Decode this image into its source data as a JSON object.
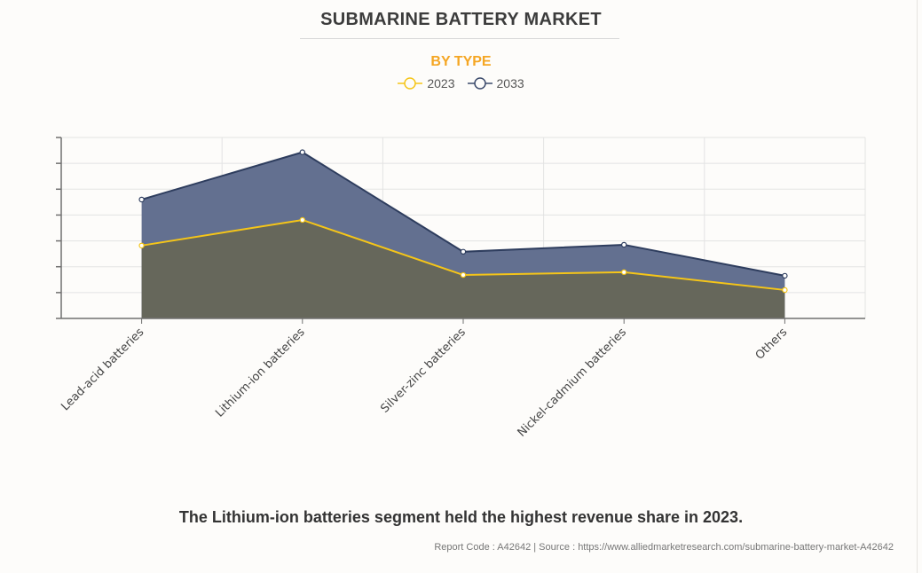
{
  "header": {
    "title": "SUBMARINE BATTERY MARKET",
    "subtitle": "BY TYPE"
  },
  "legend": [
    {
      "label": "2023",
      "color": "#f5c518"
    },
    {
      "label": "2033",
      "color": "#3b4a6b"
    }
  ],
  "caption": "The Lithium-ion batteries segment held the highest revenue share in 2023.",
  "source": "Report Code : A42642  |  Source : https://www.alliedmarketresearch.com/submarine-battery-market-A42642",
  "colors": {
    "line_2023": "#f5c518",
    "line_2033": "#2e3d5e",
    "fill_2023": "#66675b",
    "fill_2033": "#637090",
    "grid": "#e3e3e3",
    "axis": "#707070"
  },
  "chart_data": {
    "type": "area",
    "title": "SUBMARINE BATTERY MARKET",
    "subtitle": "BY TYPE",
    "categories": [
      "Lead-acid batteries",
      "Lithium-ion batteries",
      "Silver-zinc batteries",
      "Nickel-cadmium batteries",
      "Others"
    ],
    "series": [
      {
        "name": "2023",
        "values": [
          2.82,
          3.81,
          1.68,
          1.79,
          1.1
        ]
      },
      {
        "name": "2033",
        "values": [
          4.6,
          6.43,
          2.58,
          2.85,
          1.65
        ]
      }
    ],
    "xlabel": "",
    "ylabel": "",
    "ylim": [
      0,
      7
    ],
    "y_tick_labels_shown": false,
    "grid": true,
    "legend_position": "top-center"
  }
}
